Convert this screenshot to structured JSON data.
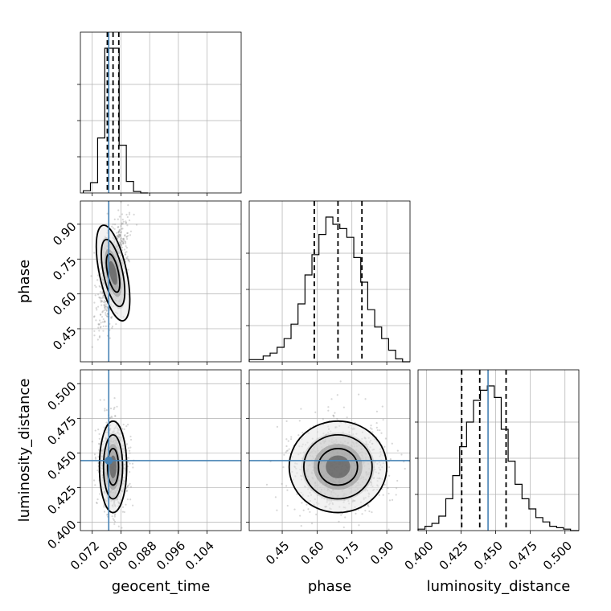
{
  "chart_data": {
    "type": "corner",
    "parameters": [
      "geocent_time",
      "phase",
      "luminosity_distance"
    ],
    "ranges": {
      "geocent_time": [
        0.0687,
        0.1135
      ],
      "phase": [
        0.308,
        1.0
      ],
      "luminosity_distance": [
        0.394,
        0.51
      ]
    },
    "ticks": {
      "geocent_time": [
        0.072,
        0.08,
        0.088,
        0.096,
        0.104
      ],
      "phase": [
        0.45,
        0.6,
        0.75,
        0.9
      ],
      "luminosity_distance": [
        0.4,
        0.425,
        0.45,
        0.475,
        0.5
      ]
    },
    "tick_labels": {
      "geocent_time": [
        "0.072",
        "0.080",
        "0.088",
        "0.096",
        "0.104"
      ],
      "phase": [
        "0.45",
        "0.60",
        "0.75",
        "0.90"
      ],
      "luminosity_distance": [
        "0.400",
        "0.425",
        "0.450",
        "0.475",
        "0.500"
      ]
    },
    "truths": {
      "geocent_time": 0.0766,
      "phase": null,
      "luminosity_distance": 0.4445
    },
    "quantiles": {
      "geocent_time": [
        0.0762,
        0.0778,
        0.0794
      ],
      "phase": [
        0.588,
        0.69,
        0.793
      ],
      "luminosity_distance": [
        0.4255,
        0.4385,
        0.4575
      ]
    },
    "histograms": {
      "geocent_time": {
        "bins": [
          0.0695,
          0.0715,
          0.0735,
          0.0755,
          0.0775,
          0.0795,
          0.0815,
          0.0835,
          0.0855,
          0.0875
        ],
        "counts": [
          0.015,
          0.07,
          0.38,
          1.0,
          1.0,
          0.33,
          0.08,
          0.01,
          0.0
        ]
      },
      "phase": {
        "bins": [
          0.308,
          0.338,
          0.368,
          0.398,
          0.428,
          0.458,
          0.488,
          0.518,
          0.548,
          0.578,
          0.608,
          0.638,
          0.668,
          0.698,
          0.728,
          0.758,
          0.788,
          0.818,
          0.848,
          0.878,
          0.908,
          0.938,
          0.968,
          1.0
        ],
        "counts": [
          0.015,
          0.015,
          0.04,
          0.06,
          0.1,
          0.16,
          0.26,
          0.4,
          0.6,
          0.74,
          0.88,
          1.0,
          0.95,
          0.92,
          0.86,
          0.72,
          0.55,
          0.36,
          0.24,
          0.16,
          0.08,
          0.02,
          0.0
        ]
      },
      "luminosity_distance": {
        "bins": [
          0.394,
          0.399,
          0.404,
          0.409,
          0.414,
          0.419,
          0.424,
          0.429,
          0.434,
          0.439,
          0.444,
          0.449,
          0.454,
          0.459,
          0.464,
          0.469,
          0.474,
          0.479,
          0.484,
          0.489,
          0.494,
          0.499,
          0.504,
          0.51
        ],
        "counts": [
          0.01,
          0.03,
          0.05,
          0.1,
          0.22,
          0.38,
          0.58,
          0.75,
          0.9,
          0.97,
          1.0,
          0.92,
          0.7,
          0.48,
          0.32,
          0.22,
          0.15,
          0.09,
          0.06,
          0.03,
          0.02,
          0.01,
          0.0
        ]
      }
    },
    "grid": true
  }
}
